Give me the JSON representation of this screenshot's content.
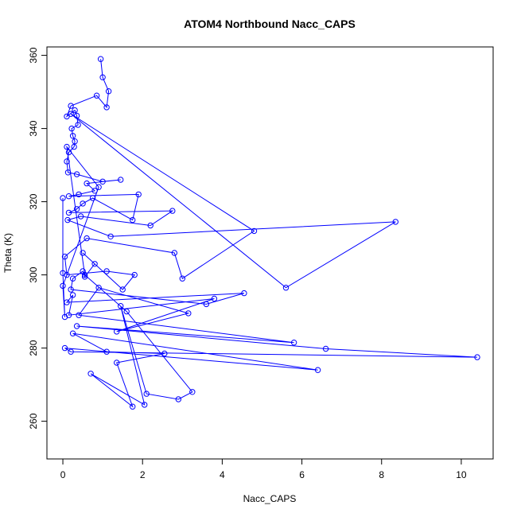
{
  "chart_data": {
    "type": "scatter",
    "title": "ATOM4 Northbound Nacc_CAPS",
    "xlabel": "Nacc_CAPS",
    "ylabel": "Theta (K)",
    "xlim": [
      -0.4,
      10.8
    ],
    "ylim": [
      249.7,
      362.3
    ],
    "xticks": [
      0,
      2,
      4,
      6,
      8,
      10
    ],
    "yticks": [
      260,
      280,
      300,
      320,
      340,
      360
    ],
    "grid": false,
    "series": [
      {
        "color": "#0000ff",
        "marker": "open-circle",
        "connected": true,
        "points": [
          [
            0.95,
            359.0
          ],
          [
            1.0,
            354.0
          ],
          [
            1.15,
            350.2
          ],
          [
            1.1,
            345.8
          ],
          [
            0.85,
            349.0
          ],
          [
            0.2,
            346.2
          ],
          [
            0.1,
            343.3
          ],
          [
            0.3,
            345.0
          ],
          [
            0.35,
            343.5
          ],
          [
            0.38,
            341.0
          ],
          [
            0.22,
            340.0
          ],
          [
            0.25,
            338.0
          ],
          [
            0.3,
            336.5
          ],
          [
            0.28,
            335.0
          ],
          [
            0.15,
            333.5
          ],
          [
            0.1,
            331.0
          ],
          [
            0.13,
            328.0
          ],
          [
            0.35,
            327.5
          ],
          [
            1.0,
            325.5
          ],
          [
            1.45,
            326.0
          ],
          [
            0.6,
            325.0
          ],
          [
            0.8,
            323.0
          ],
          [
            0.4,
            322.0
          ],
          [
            0.15,
            321.5
          ],
          [
            1.9,
            322.0
          ],
          [
            1.75,
            315.0
          ],
          [
            0.75,
            321.0
          ],
          [
            0.5,
            319.5
          ],
          [
            0.35,
            318.0
          ],
          [
            0.15,
            317.0
          ],
          [
            2.75,
            317.5
          ],
          [
            2.2,
            313.5
          ],
          [
            0.45,
            316.0
          ],
          [
            0.12,
            315.0
          ],
          [
            1.2,
            310.5
          ],
          [
            8.35,
            314.5
          ],
          [
            5.6,
            296.5
          ],
          [
            0.2,
            344.0
          ],
          [
            4.8,
            312.0
          ],
          [
            3.0,
            299.0
          ],
          [
            2.8,
            306.0
          ],
          [
            0.6,
            310.0
          ],
          [
            0.05,
            305.0
          ],
          [
            0.1,
            300.0
          ],
          [
            1.1,
            301.0
          ],
          [
            1.8,
            300.0
          ],
          [
            1.5,
            296.0
          ],
          [
            0.5,
            306.0
          ],
          [
            0.8,
            303.0
          ],
          [
            0.55,
            299.5
          ],
          [
            0.5,
            301.0
          ],
          [
            0.25,
            299.0
          ],
          [
            0.2,
            296.0
          ],
          [
            3.6,
            292.0
          ],
          [
            4.55,
            295.0
          ],
          [
            0.1,
            292.5
          ],
          [
            0.25,
            294.5
          ],
          [
            0.15,
            289.0
          ],
          [
            3.8,
            293.5
          ],
          [
            1.35,
            284.5
          ],
          [
            3.15,
            289.5
          ],
          [
            0.9,
            296.5
          ],
          [
            0.4,
            289.0
          ],
          [
            5.8,
            281.5
          ],
          [
            0.35,
            286.0
          ],
          [
            6.6,
            279.8
          ],
          [
            10.4,
            277.5
          ],
          [
            0.2,
            279.0
          ],
          [
            0.05,
            280.0
          ],
          [
            6.4,
            274.0
          ],
          [
            0.25,
            284.0
          ],
          [
            1.1,
            279.0
          ],
          [
            2.55,
            278.5
          ],
          [
            1.35,
            276.0
          ],
          [
            1.75,
            264.0
          ],
          [
            0.7,
            273.0
          ],
          [
            2.05,
            264.5
          ],
          [
            1.45,
            291.5
          ],
          [
            2.1,
            267.5
          ],
          [
            2.9,
            266.0
          ],
          [
            3.25,
            268.0
          ],
          [
            1.6,
            290.0
          ],
          [
            0.55,
            300.0
          ],
          [
            0.1,
            335.0
          ],
          [
            0.9,
            324.0
          ],
          [
            0.0,
            297.0
          ],
          [
            0.05,
            288.5
          ],
          [
            0.0,
            300.5
          ],
          [
            0.0,
            321.0
          ]
        ]
      }
    ]
  }
}
